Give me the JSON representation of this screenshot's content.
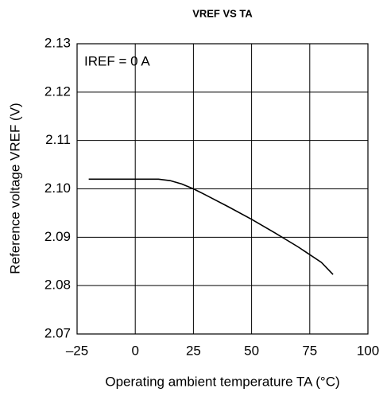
{
  "chart_data": {
    "type": "line",
    "title": "VREF VS TA",
    "annotation": "IREF = 0 A",
    "x_label": "Operating ambient temperature  TA (°C)",
    "y_label": "Reference voltage  VREF (V)",
    "x": [
      -20,
      -10,
      0,
      10,
      15,
      20,
      25,
      30,
      40,
      50,
      60,
      70,
      80,
      85
    ],
    "series": [
      {
        "color": "#000000",
        "values": [
          2.102,
          2.102,
          2.102,
          2.102,
          2.1017,
          2.101,
          2.1,
          2.0988,
          2.0963,
          2.0937,
          2.0909,
          2.088,
          2.0848,
          2.0823
        ]
      }
    ],
    "xlim": [
      -25,
      100
    ],
    "xticks": [
      {
        "value": -25,
        "label": "–25"
      },
      0,
      25,
      50,
      75,
      100
    ],
    "ylim": [
      2.07,
      2.13
    ],
    "yticks": [
      2.07,
      2.08,
      2.09,
      {
        "value": 2.1,
        "label": "2.10"
      },
      2.11,
      2.12,
      2.13
    ],
    "grid": true
  }
}
